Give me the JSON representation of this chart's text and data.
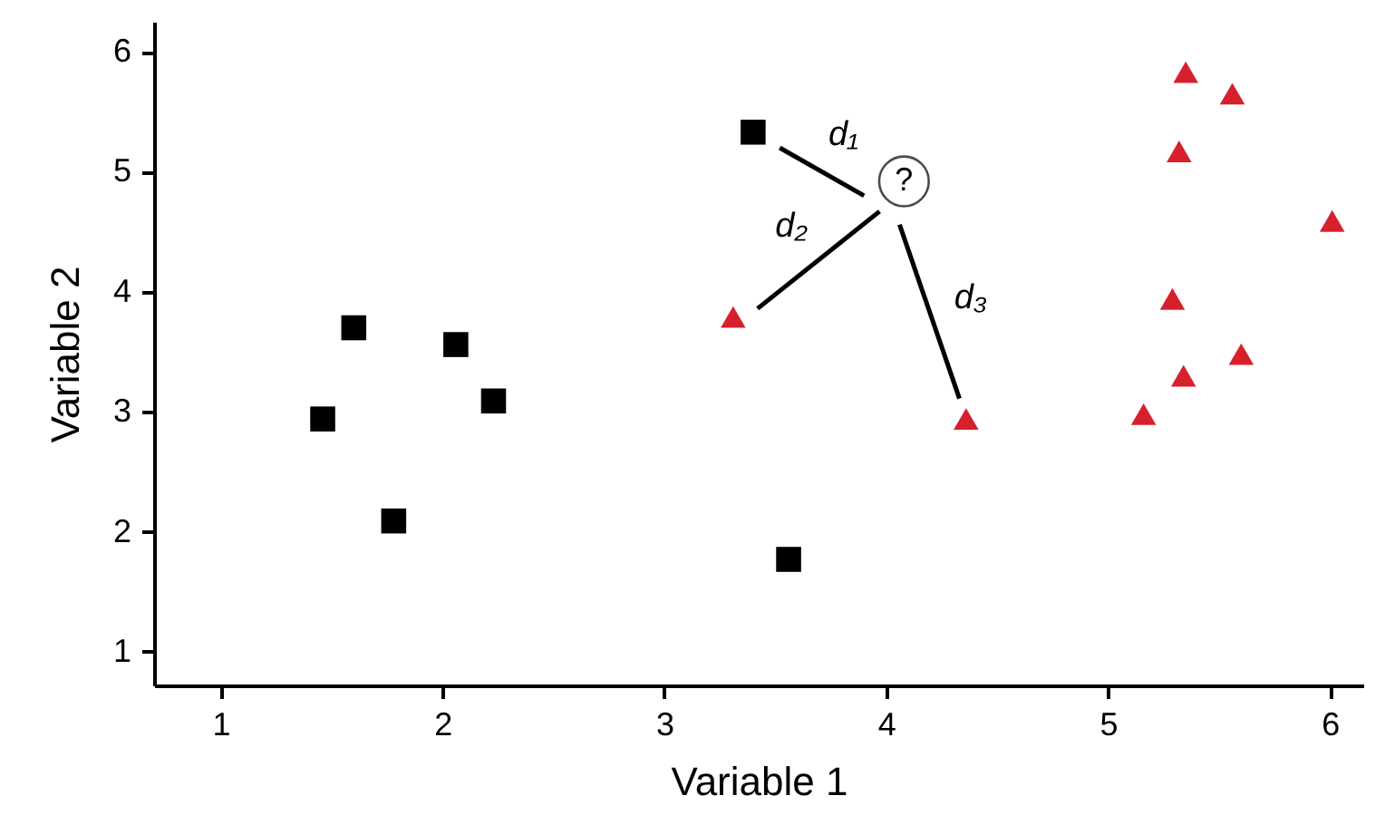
{
  "chart_data": {
    "type": "scatter",
    "xlabel": "Variable 1",
    "ylabel": "Variable 2",
    "xlim": [
      0.7,
      6.15
    ],
    "ylim": [
      0.72,
      6.25
    ],
    "xticks": [
      1,
      2,
      3,
      4,
      5,
      6
    ],
    "yticks": [
      1,
      2,
      3,
      4,
      5,
      6
    ],
    "series": [
      {
        "marker": "square",
        "color": "#000000",
        "x": [
          1.46,
          1.6,
          1.78,
          2.06,
          2.23,
          3.4,
          3.56
        ],
        "values": [
          2.94,
          3.7,
          2.09,
          3.56,
          3.09,
          5.33,
          1.77
        ]
      },
      {
        "marker": "triangle",
        "color": "#d7202e",
        "x": [
          3.31,
          4.36,
          5.16,
          5.34,
          5.6,
          5.29,
          5.32,
          5.35,
          5.56,
          6.01
        ],
        "values": [
          3.79,
          2.94,
          2.98,
          3.3,
          3.48,
          3.94,
          5.17,
          5.83,
          5.65,
          4.59
        ]
      },
      {
        "type": "line",
        "name": "d₁",
        "color": "#000000",
        "x": [
          3.52,
          3.9
        ],
        "values": [
          5.2,
          4.8
        ]
      },
      {
        "type": "line",
        "name": "d₂",
        "color": "#000000",
        "x": [
          3.42,
          3.97
        ],
        "values": [
          3.86,
          4.67
        ]
      },
      {
        "type": "line",
        "name": "d₃",
        "color": "#000000",
        "x": [
          4.33,
          4.06
        ],
        "values": [
          3.11,
          4.56
        ]
      }
    ],
    "annotations": [
      {
        "text": "?",
        "x": 4.08,
        "y": 4.92
      }
    ]
  }
}
